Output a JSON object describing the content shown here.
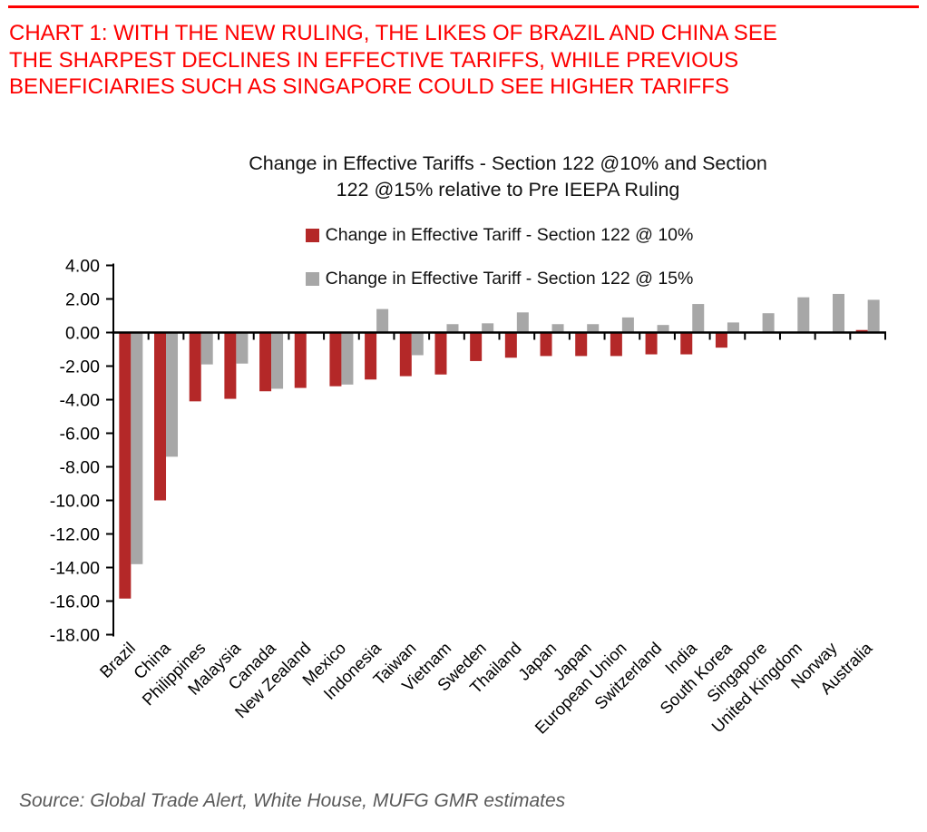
{
  "header": {
    "accent_color": "#fe0000",
    "lines": [
      "CHART 1: WITH THE NEW RULING, THE LIKES OF BRAZIL AND CHINA SEE",
      "THE SHARPEST DECLINES IN EFFECTIVE TARIFFS, WHILE PREVIOUS",
      "BENEFICIARIES SUCH AS SINGAPORE COULD SEE HIGHER TARIFFS"
    ],
    "title": "CHART 1: WITH THE NEW RULING, THE LIKES OF BRAZIL AND CHINA SEE THE SHARPEST DECLINES IN EFFECTIVE TARIFFS, WHILE PREVIOUS BENEFICIARIES SUCH AS SINGAPORE COULD SEE HIGHER TARIFFS"
  },
  "chart_data": {
    "type": "bar",
    "title": "Change in Effective Tariffs - Section 122 @10% and Section 122 @15% relative to Pre IEEPA Ruling",
    "title_lines": [
      "Change in Effective Tariffs - Section 122 @10% and Section",
      "122 @15% relative to Pre IEEPA Ruling"
    ],
    "categories": [
      "Brazil",
      "China",
      "Philippines",
      "Malaysia",
      "Canada",
      "New Zealand",
      "Mexico",
      "Indonesia",
      "Taiwan",
      "Vietnam",
      "Sweden",
      "Thailand",
      "Japan",
      "Japan",
      "European Union",
      "Switzerland",
      "India",
      "South Korea",
      "Singapore",
      "United Kingdom",
      "Norway",
      "Australia"
    ],
    "series": [
      {
        "name": "Change in Effective Tariff - Section 122 @ 10%",
        "color": "#b42828",
        "values": [
          -15.85,
          -10.0,
          -4.1,
          -3.95,
          -3.5,
          -3.3,
          -3.2,
          -2.8,
          -2.6,
          -2.5,
          -1.7,
          -1.5,
          -1.4,
          -1.4,
          -1.4,
          -1.3,
          -1.3,
          -0.9,
          0,
          0,
          0,
          0.15
        ]
      },
      {
        "name": "Change in Effective Tariff - Section 122 @ 15%",
        "color": "#a7a7a7",
        "values": [
          -13.8,
          -7.4,
          -1.9,
          -1.85,
          -3.35,
          0,
          -3.1,
          1.4,
          -1.35,
          0.5,
          0.55,
          1.2,
          0.5,
          0.5,
          0.9,
          0.45,
          1.7,
          0.6,
          1.15,
          2.1,
          2.3,
          1.95
        ]
      }
    ],
    "ylim": [
      -18,
      4
    ],
    "ytick_step": 2,
    "yticks": [
      "4.00",
      "2.00",
      "0.00",
      "-2.00",
      "-4.00",
      "-6.00",
      "-8.00",
      "-10.00",
      "-12.00",
      "-14.00",
      "-16.00",
      "-18.00"
    ],
    "xlabel": "",
    "ylabel": "",
    "grid": false,
    "legend_position": "top-center",
    "x_label_rotation_deg": 45
  },
  "footer": {
    "source": "Source: Global Trade Alert, White House, MUFG GMR estimates"
  }
}
